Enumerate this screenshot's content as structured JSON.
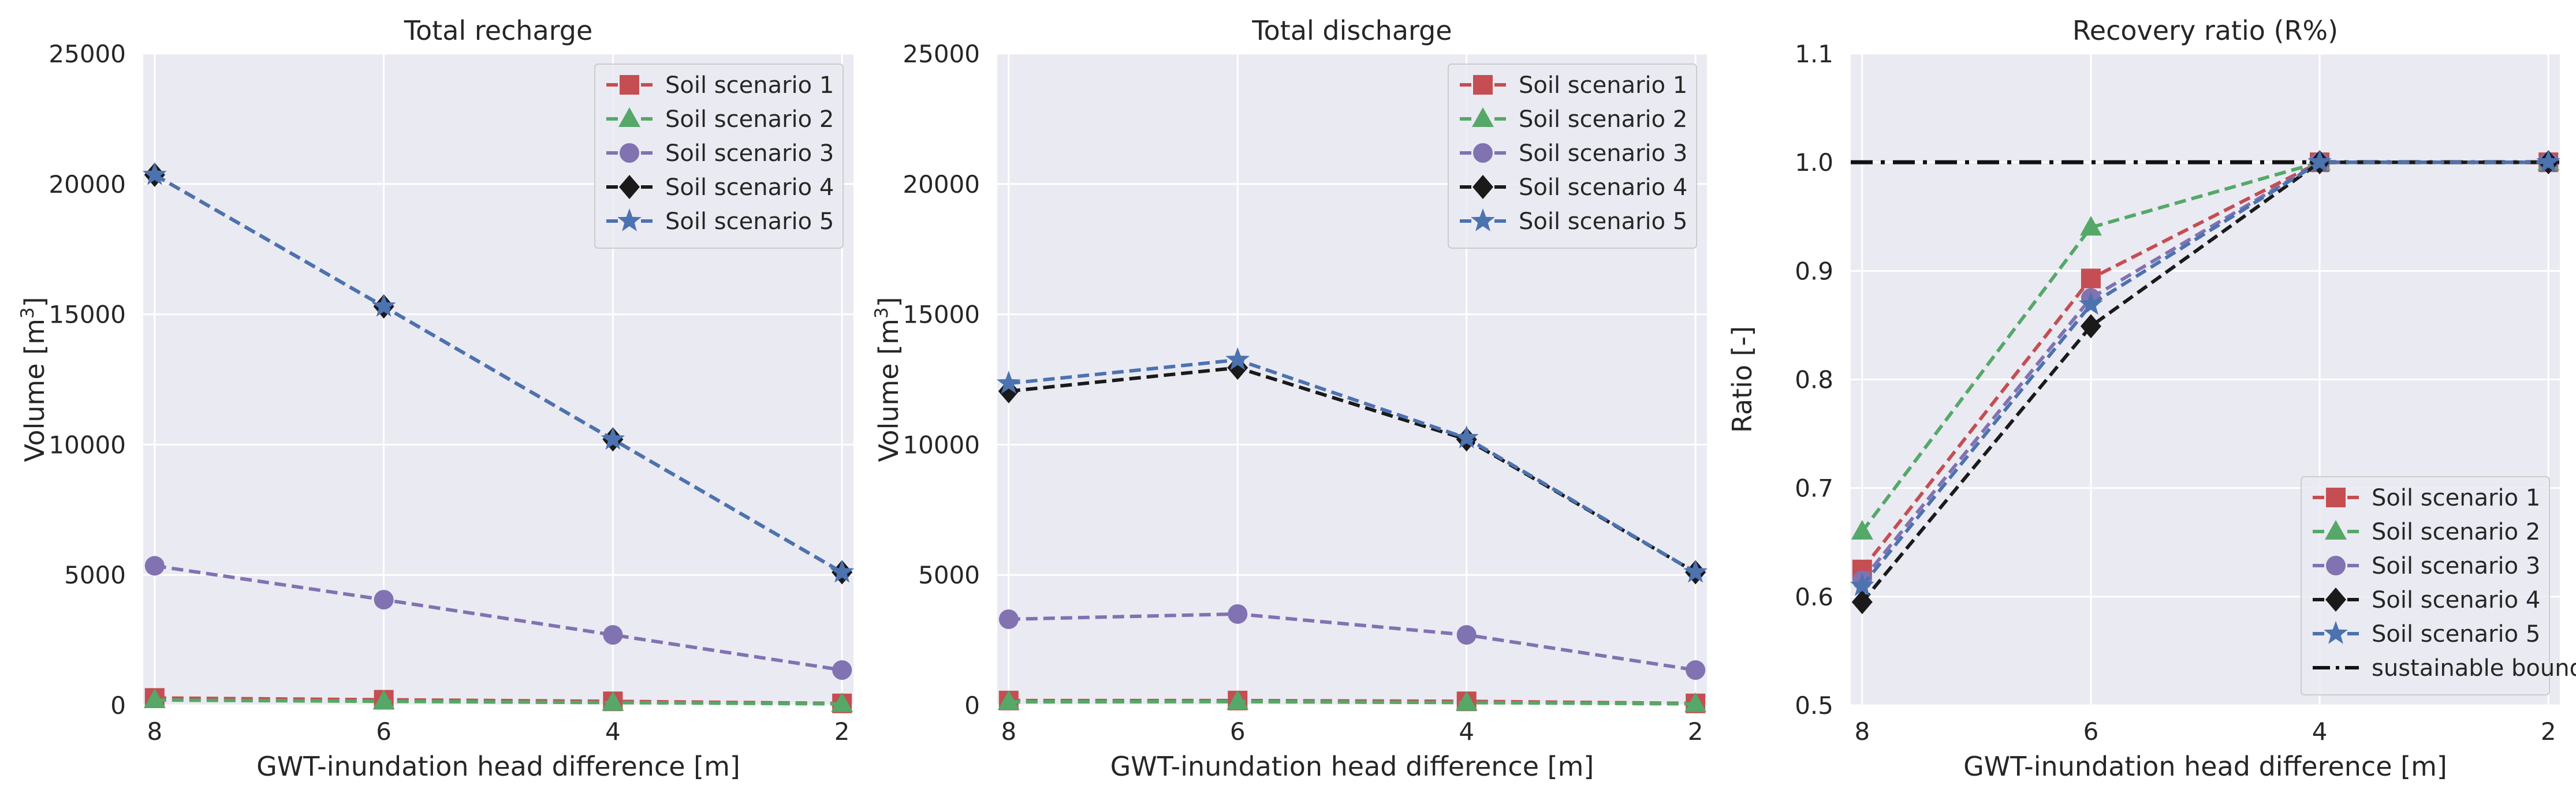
{
  "figure": {
    "background": "#ffffff",
    "plot_background": "#eaeaf2",
    "grid_color": "#ffffff",
    "text_color": "#262626"
  },
  "chart_data": [
    {
      "type": "line",
      "title": "Total recharge",
      "xlabel": "GWT-inundation head difference [m]",
      "ylabel": "Volume [m",
      "ylabel_sup": "3",
      "ylabel_close": "]",
      "x": [
        8,
        6,
        4,
        2
      ],
      "x_ticks": [
        "8",
        "6",
        "4",
        "2"
      ],
      "xlim": [
        8.1,
        1.9
      ],
      "ylim": [
        0,
        25000
      ],
      "y_ticks": [
        "0",
        "5000",
        "10000",
        "15000",
        "20000",
        "25000"
      ],
      "y_tick_values": [
        0,
        5000,
        10000,
        15000,
        20000,
        25000
      ],
      "grid": true,
      "legend_position": "top-right",
      "series": [
        {
          "name": "Soil scenario 1",
          "values": [
            280,
            210,
            150,
            70
          ],
          "color": "#c44e52",
          "marker": "square"
        },
        {
          "name": "Soil scenario 2",
          "values": [
            200,
            150,
            100,
            50
          ],
          "color": "#55a868",
          "marker": "triangle"
        },
        {
          "name": "Soil scenario 3",
          "values": [
            5350,
            4050,
            2700,
            1350
          ],
          "color": "#8172b2",
          "marker": "circle"
        },
        {
          "name": "Soil scenario 4",
          "values": [
            20350,
            15300,
            10200,
            5100
          ],
          "color": "#1a1a1a",
          "marker": "diamond"
        },
        {
          "name": "Soil scenario 5",
          "values": [
            20350,
            15300,
            10200,
            5100
          ],
          "color": "#4c72b0",
          "marker": "star"
        }
      ]
    },
    {
      "type": "line",
      "title": "Total discharge",
      "xlabel": "GWT-inundation head difference [m]",
      "ylabel": "Volume [m",
      "ylabel_sup": "3",
      "ylabel_close": "]",
      "x": [
        8,
        6,
        4,
        2
      ],
      "x_ticks": [
        "8",
        "6",
        "4",
        "2"
      ],
      "xlim": [
        8.1,
        1.9
      ],
      "ylim": [
        0,
        25000
      ],
      "y_ticks": [
        "0",
        "5000",
        "10000",
        "15000",
        "20000",
        "25000"
      ],
      "y_tick_values": [
        0,
        5000,
        10000,
        15000,
        20000,
        25000
      ],
      "grid": true,
      "legend_position": "top-right",
      "series": [
        {
          "name": "Soil scenario 1",
          "values": [
            180,
            180,
            150,
            70
          ],
          "color": "#c44e52",
          "marker": "square"
        },
        {
          "name": "Soil scenario 2",
          "values": [
            130,
            140,
            100,
            50
          ],
          "color": "#55a868",
          "marker": "triangle"
        },
        {
          "name": "Soil scenario 3",
          "values": [
            3300,
            3500,
            2700,
            1350
          ],
          "color": "#8172b2",
          "marker": "circle"
        },
        {
          "name": "Soil scenario 4",
          "values": [
            12050,
            12950,
            10200,
            5100
          ],
          "color": "#1a1a1a",
          "marker": "diamond"
        },
        {
          "name": "Soil scenario 5",
          "values": [
            12350,
            13250,
            10250,
            5100
          ],
          "color": "#4c72b0",
          "marker": "star"
        }
      ]
    },
    {
      "type": "line",
      "title": "Recovery ratio (R%)",
      "xlabel": "GWT-inundation head difference [m]",
      "ylabel": "Ratio [-]",
      "ylabel_sup": "",
      "ylabel_close": "",
      "x": [
        8,
        6,
        4,
        2
      ],
      "x_ticks": [
        "8",
        "6",
        "4",
        "2"
      ],
      "xlim": [
        8.1,
        1.9
      ],
      "ylim": [
        0.5,
        1.1
      ],
      "y_ticks": [
        "0.5",
        "0.6",
        "0.7",
        "0.8",
        "0.9",
        "1.0",
        "1.1"
      ],
      "y_tick_values": [
        0.5,
        0.6,
        0.7,
        0.8,
        0.9,
        1.0,
        1.1
      ],
      "grid": true,
      "legend_position": "bottom-right",
      "series": [
        {
          "name": "Soil scenario 1",
          "values": [
            0.625,
            0.893,
            1.0,
            1.0
          ],
          "color": "#c44e52",
          "marker": "square"
        },
        {
          "name": "Soil scenario 2",
          "values": [
            0.66,
            0.94,
            1.0,
            1.0
          ],
          "color": "#55a868",
          "marker": "triangle"
        },
        {
          "name": "Soil scenario 3",
          "values": [
            0.615,
            0.875,
            1.0,
            1.0
          ],
          "color": "#8172b2",
          "marker": "circle"
        },
        {
          "name": "Soil scenario 4",
          "values": [
            0.595,
            0.849,
            1.0,
            1.0
          ],
          "color": "#1a1a1a",
          "marker": "diamond"
        },
        {
          "name": "Soil scenario 5",
          "values": [
            0.61,
            0.869,
            1.0,
            1.0
          ],
          "color": "#4c72b0",
          "marker": "star"
        }
      ],
      "reference_line": {
        "name": "sustainable boundary",
        "value": 1.0,
        "color": "#111111",
        "style": "dash-dot"
      }
    }
  ]
}
